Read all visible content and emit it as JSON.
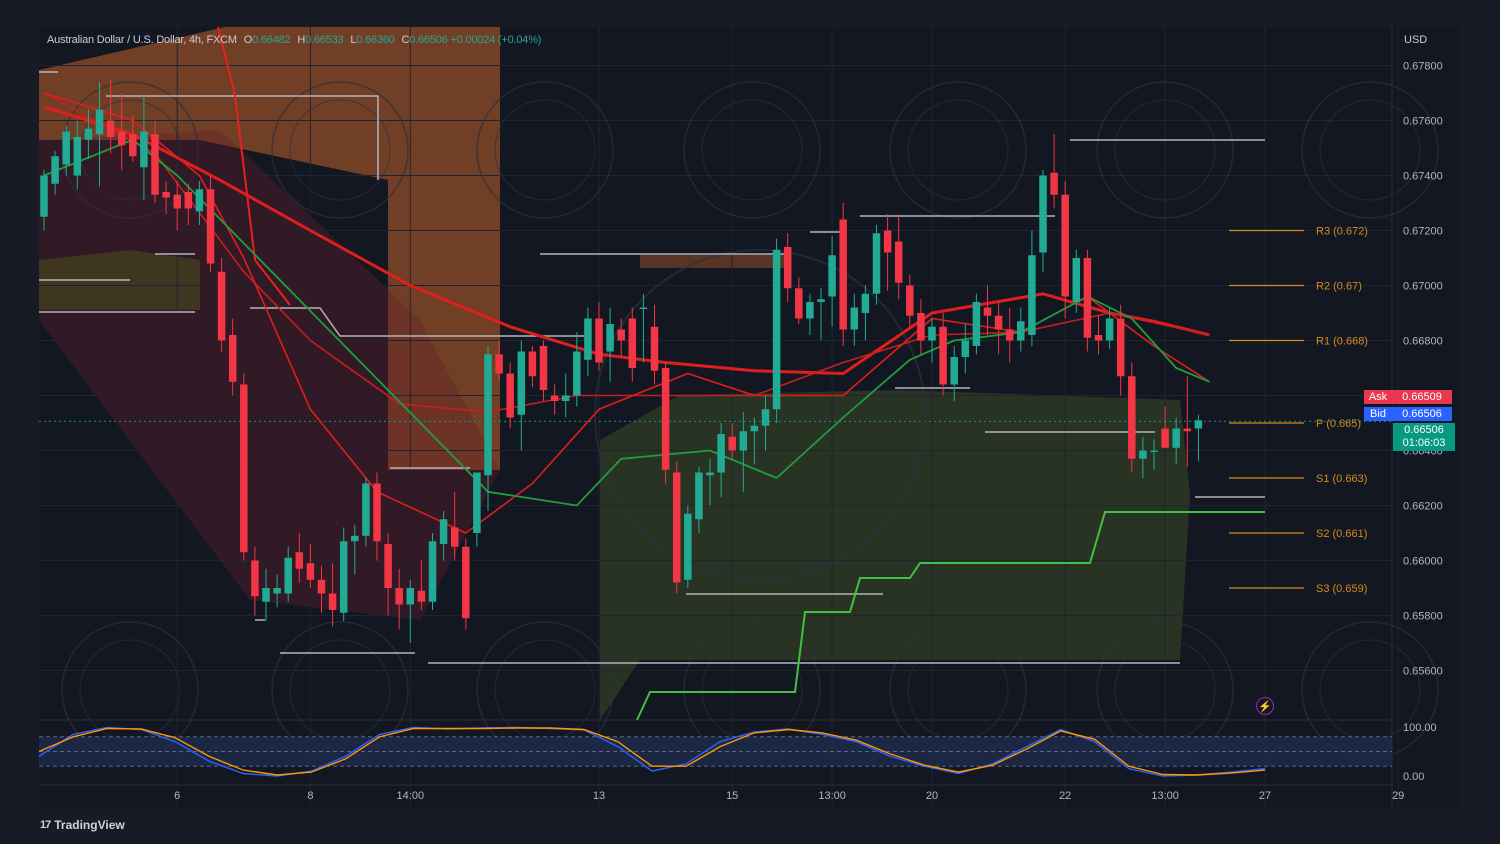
{
  "legend": {
    "symbol": "Australian Dollar / U.S. Dollar, 4h, FXCM",
    "o_label": "O",
    "o_value": "0.66482",
    "h_label": "H",
    "h_value": "0.66533",
    "l_label": "L",
    "l_value": "0.66360",
    "c_label": "C",
    "c_value": "0.66506",
    "change": "+0.00024 (+0.04%)"
  },
  "currency": "USD",
  "ask": {
    "label": "Ask",
    "value": "0.66509"
  },
  "bid": {
    "label": "Bid",
    "value": "0.66506"
  },
  "last": {
    "value": "0.66506",
    "countdown": "01:06:03"
  },
  "footer": {
    "brand": "TradingView"
  },
  "colors": {
    "up": "#22ab94",
    "down": "#f23645",
    "background": "#131722",
    "ma_red": "#e8201f",
    "ma_green": "#1e9e3e",
    "pivot": "#d48a1f",
    "stoch_k": "#2962ff",
    "stoch_d": "#ff9800"
  },
  "chart_data": {
    "type": "candlestick",
    "y_axis": {
      "min": 0.6542,
      "max": 0.6794,
      "ticks": [
        0.678,
        0.676,
        0.674,
        0.672,
        0.67,
        0.668,
        0.666,
        0.664,
        0.662,
        0.66,
        0.658,
        0.656
      ],
      "tick_labels": [
        "0.67800",
        "0.67600",
        "0.67400",
        "0.67200",
        "0.67000",
        "0.66800",
        "0.66600",
        "0.66400",
        "0.66200",
        "0.66000",
        "0.65800",
        "0.65600"
      ]
    },
    "x_axis": {
      "tick_labels": [
        "6",
        "8",
        "14:00",
        "13",
        "15",
        "13:00",
        "20",
        "22",
        "13:00",
        "27",
        "29"
      ],
      "tick_positions": [
        12,
        24,
        33,
        50,
        62,
        71,
        80,
        92,
        101,
        110,
        122
      ]
    },
    "candles": [
      {
        "o": 0.6725,
        "h": 0.6742,
        "l": 0.672,
        "c": 0.674
      },
      {
        "o": 0.6737,
        "h": 0.6749,
        "l": 0.6733,
        "c": 0.6747
      },
      {
        "o": 0.6744,
        "h": 0.6758,
        "l": 0.674,
        "c": 0.6756
      },
      {
        "o": 0.674,
        "h": 0.676,
        "l": 0.6735,
        "c": 0.6754
      },
      {
        "o": 0.6753,
        "h": 0.6764,
        "l": 0.6746,
        "c": 0.6757
      },
      {
        "o": 0.6755,
        "h": 0.6774,
        "l": 0.6736,
        "c": 0.6764
      },
      {
        "o": 0.676,
        "h": 0.6775,
        "l": 0.6748,
        "c": 0.6754
      },
      {
        "o": 0.6756,
        "h": 0.677,
        "l": 0.6742,
        "c": 0.6751
      },
      {
        "o": 0.6755,
        "h": 0.6762,
        "l": 0.6745,
        "c": 0.6747
      },
      {
        "o": 0.6743,
        "h": 0.6769,
        "l": 0.6731,
        "c": 0.6756
      },
      {
        "o": 0.6755,
        "h": 0.676,
        "l": 0.673,
        "c": 0.6733
      },
      {
        "o": 0.6734,
        "h": 0.6738,
        "l": 0.6726,
        "c": 0.6732
      },
      {
        "o": 0.6733,
        "h": 0.6738,
        "l": 0.672,
        "c": 0.6728
      },
      {
        "o": 0.6734,
        "h": 0.6737,
        "l": 0.6722,
        "c": 0.6728
      },
      {
        "o": 0.6727,
        "h": 0.6738,
        "l": 0.6722,
        "c": 0.6735
      },
      {
        "o": 0.6735,
        "h": 0.674,
        "l": 0.6705,
        "c": 0.6708
      },
      {
        "o": 0.6705,
        "h": 0.671,
        "l": 0.6676,
        "c": 0.668
      },
      {
        "o": 0.6682,
        "h": 0.6688,
        "l": 0.666,
        "c": 0.6665
      },
      {
        "o": 0.6664,
        "h": 0.6668,
        "l": 0.66,
        "c": 0.6603
      },
      {
        "o": 0.66,
        "h": 0.6605,
        "l": 0.658,
        "c": 0.6587
      },
      {
        "o": 0.6585,
        "h": 0.6597,
        "l": 0.6578,
        "c": 0.659
      },
      {
        "o": 0.6588,
        "h": 0.6595,
        "l": 0.6583,
        "c": 0.659
      },
      {
        "o": 0.6588,
        "h": 0.6605,
        "l": 0.6585,
        "c": 0.6601
      },
      {
        "o": 0.6603,
        "h": 0.661,
        "l": 0.6592,
        "c": 0.6597
      },
      {
        "o": 0.6599,
        "h": 0.6606,
        "l": 0.659,
        "c": 0.6593
      },
      {
        "o": 0.6593,
        "h": 0.6598,
        "l": 0.6581,
        "c": 0.6588
      },
      {
        "o": 0.6588,
        "h": 0.6599,
        "l": 0.6576,
        "c": 0.6582
      },
      {
        "o": 0.6581,
        "h": 0.6612,
        "l": 0.6578,
        "c": 0.6607
      },
      {
        "o": 0.6607,
        "h": 0.6613,
        "l": 0.6595,
        "c": 0.6609
      },
      {
        "o": 0.6609,
        "h": 0.663,
        "l": 0.6605,
        "c": 0.6628
      },
      {
        "o": 0.6628,
        "h": 0.6632,
        "l": 0.66,
        "c": 0.6607
      },
      {
        "o": 0.6606,
        "h": 0.661,
        "l": 0.658,
        "c": 0.659
      },
      {
        "o": 0.659,
        "h": 0.6597,
        "l": 0.6575,
        "c": 0.6584
      },
      {
        "o": 0.6584,
        "h": 0.6593,
        "l": 0.657,
        "c": 0.659
      },
      {
        "o": 0.6589,
        "h": 0.66,
        "l": 0.6582,
        "c": 0.6585
      },
      {
        "o": 0.6585,
        "h": 0.661,
        "l": 0.6582,
        "c": 0.6607
      },
      {
        "o": 0.6606,
        "h": 0.6618,
        "l": 0.66,
        "c": 0.6615
      },
      {
        "o": 0.6612,
        "h": 0.6625,
        "l": 0.66,
        "c": 0.6605
      },
      {
        "o": 0.6605,
        "h": 0.6608,
        "l": 0.6575,
        "c": 0.6579
      },
      {
        "o": 0.661,
        "h": 0.6632,
        "l": 0.6605,
        "c": 0.6632
      },
      {
        "o": 0.6631,
        "h": 0.6678,
        "l": 0.6618,
        "c": 0.6675
      },
      {
        "o": 0.6675,
        "h": 0.668,
        "l": 0.6665,
        "c": 0.6668
      },
      {
        "o": 0.6668,
        "h": 0.6672,
        "l": 0.6648,
        "c": 0.6652
      },
      {
        "o": 0.6653,
        "h": 0.668,
        "l": 0.664,
        "c": 0.6676
      },
      {
        "o": 0.6676,
        "h": 0.6678,
        "l": 0.6663,
        "c": 0.6667
      },
      {
        "o": 0.6678,
        "h": 0.668,
        "l": 0.6658,
        "c": 0.6662
      },
      {
        "o": 0.666,
        "h": 0.6664,
        "l": 0.6653,
        "c": 0.6658
      },
      {
        "o": 0.6658,
        "h": 0.6668,
        "l": 0.6652,
        "c": 0.666
      },
      {
        "o": 0.666,
        "h": 0.6683,
        "l": 0.6656,
        "c": 0.6676
      },
      {
        "o": 0.6673,
        "h": 0.6692,
        "l": 0.6667,
        "c": 0.6688
      },
      {
        "o": 0.6688,
        "h": 0.6694,
        "l": 0.6669,
        "c": 0.6672
      },
      {
        "o": 0.6676,
        "h": 0.6692,
        "l": 0.6665,
        "c": 0.6686
      },
      {
        "o": 0.6684,
        "h": 0.6688,
        "l": 0.6674,
        "c": 0.668
      },
      {
        "o": 0.6688,
        "h": 0.6692,
        "l": 0.6665,
        "c": 0.667
      },
      {
        "o": 0.6692,
        "h": 0.6697,
        "l": 0.6672,
        "c": 0.6692
      },
      {
        "o": 0.6685,
        "h": 0.6693,
        "l": 0.6664,
        "c": 0.6669
      },
      {
        "o": 0.667,
        "h": 0.6672,
        "l": 0.6628,
        "c": 0.6633
      },
      {
        "o": 0.6632,
        "h": 0.6636,
        "l": 0.6588,
        "c": 0.6592
      },
      {
        "o": 0.6593,
        "h": 0.662,
        "l": 0.659,
        "c": 0.6617
      },
      {
        "o": 0.6615,
        "h": 0.6634,
        "l": 0.661,
        "c": 0.6632
      },
      {
        "o": 0.6631,
        "h": 0.6637,
        "l": 0.662,
        "c": 0.6632
      },
      {
        "o": 0.6632,
        "h": 0.665,
        "l": 0.6623,
        "c": 0.6646
      },
      {
        "o": 0.6645,
        "h": 0.665,
        "l": 0.6637,
        "c": 0.664
      },
      {
        "o": 0.664,
        "h": 0.6654,
        "l": 0.6625,
        "c": 0.6647
      },
      {
        "o": 0.6647,
        "h": 0.6652,
        "l": 0.6635,
        "c": 0.6649
      },
      {
        "o": 0.6649,
        "h": 0.666,
        "l": 0.664,
        "c": 0.6655
      },
      {
        "o": 0.6655,
        "h": 0.6717,
        "l": 0.665,
        "c": 0.6713
      },
      {
        "o": 0.6714,
        "h": 0.6719,
        "l": 0.6694,
        "c": 0.6699
      },
      {
        "o": 0.6699,
        "h": 0.6703,
        "l": 0.6686,
        "c": 0.6688
      },
      {
        "o": 0.6688,
        "h": 0.6697,
        "l": 0.6682,
        "c": 0.6694
      },
      {
        "o": 0.6694,
        "h": 0.6699,
        "l": 0.668,
        "c": 0.6695
      },
      {
        "o": 0.6696,
        "h": 0.6718,
        "l": 0.6685,
        "c": 0.6711
      },
      {
        "o": 0.6724,
        "h": 0.673,
        "l": 0.6678,
        "c": 0.6684
      },
      {
        "o": 0.6684,
        "h": 0.6697,
        "l": 0.6678,
        "c": 0.6692
      },
      {
        "o": 0.669,
        "h": 0.67,
        "l": 0.668,
        "c": 0.6697
      },
      {
        "o": 0.6697,
        "h": 0.6722,
        "l": 0.6693,
        "c": 0.6719
      },
      {
        "o": 0.672,
        "h": 0.6726,
        "l": 0.6698,
        "c": 0.6712
      },
      {
        "o": 0.6716,
        "h": 0.6726,
        "l": 0.6695,
        "c": 0.6701
      },
      {
        "o": 0.67,
        "h": 0.6704,
        "l": 0.6685,
        "c": 0.6689
      },
      {
        "o": 0.669,
        "h": 0.6695,
        "l": 0.6675,
        "c": 0.668
      },
      {
        "o": 0.668,
        "h": 0.6688,
        "l": 0.6672,
        "c": 0.6685
      },
      {
        "o": 0.6685,
        "h": 0.669,
        "l": 0.666,
        "c": 0.6664
      },
      {
        "o": 0.6664,
        "h": 0.6678,
        "l": 0.6658,
        "c": 0.6674
      },
      {
        "o": 0.6674,
        "h": 0.6686,
        "l": 0.6668,
        "c": 0.668
      },
      {
        "o": 0.6678,
        "h": 0.6697,
        "l": 0.6675,
        "c": 0.6694
      },
      {
        "o": 0.6692,
        "h": 0.67,
        "l": 0.6682,
        "c": 0.6689
      },
      {
        "o": 0.6689,
        "h": 0.6694,
        "l": 0.6675,
        "c": 0.6684
      },
      {
        "o": 0.6684,
        "h": 0.6692,
        "l": 0.6672,
        "c": 0.668
      },
      {
        "o": 0.668,
        "h": 0.6692,
        "l": 0.6676,
        "c": 0.6687
      },
      {
        "o": 0.6682,
        "h": 0.672,
        "l": 0.6678,
        "c": 0.6711
      },
      {
        "o": 0.6712,
        "h": 0.6742,
        "l": 0.6705,
        "c": 0.674
      },
      {
        "o": 0.6741,
        "h": 0.6755,
        "l": 0.6728,
        "c": 0.6733
      },
      {
        "o": 0.6733,
        "h": 0.6738,
        "l": 0.6688,
        "c": 0.6696
      },
      {
        "o": 0.6694,
        "h": 0.6713,
        "l": 0.669,
        "c": 0.671
      },
      {
        "o": 0.671,
        "h": 0.6713,
        "l": 0.6676,
        "c": 0.6681
      },
      {
        "o": 0.6682,
        "h": 0.6689,
        "l": 0.6675,
        "c": 0.668
      },
      {
        "o": 0.668,
        "h": 0.6692,
        "l": 0.6677,
        "c": 0.6688
      },
      {
        "o": 0.6688,
        "h": 0.6693,
        "l": 0.666,
        "c": 0.6667
      },
      {
        "o": 0.6667,
        "h": 0.6672,
        "l": 0.6632,
        "c": 0.6637
      },
      {
        "o": 0.6637,
        "h": 0.6645,
        "l": 0.663,
        "c": 0.664
      },
      {
        "o": 0.664,
        "h": 0.6644,
        "l": 0.6633,
        "c": 0.664
      },
      {
        "o": 0.6648,
        "h": 0.6656,
        "l": 0.6642,
        "c": 0.6641
      },
      {
        "o": 0.6641,
        "h": 0.6652,
        "l": 0.6635,
        "c": 0.6648
      },
      {
        "o": 0.6648,
        "h": 0.6667,
        "l": 0.6634,
        "c": 0.6647
      },
      {
        "o": 0.6648,
        "h": 0.6653,
        "l": 0.6636,
        "c": 0.6651
      }
    ],
    "moving_averages": [
      {
        "name": "slow",
        "color": "#e01e1e",
        "points": [
          [
            0,
            0.6765
          ],
          [
            8,
            0.6755
          ],
          [
            16,
            0.6738
          ],
          [
            24,
            0.672
          ],
          [
            33,
            0.67
          ],
          [
            42,
            0.6685
          ],
          [
            50,
            0.6675
          ],
          [
            56,
            0.6672
          ],
          [
            64,
            0.6669
          ],
          [
            72,
            0.6668
          ],
          [
            80,
            0.669
          ],
          [
            90,
            0.6697
          ],
          [
            96,
            0.669
          ],
          [
            100,
            0.6687
          ],
          [
            105,
            0.6682
          ]
        ]
      },
      {
        "name": "mid",
        "color": "#c81e1e",
        "points": [
          [
            0,
            0.677
          ],
          [
            10,
            0.6748
          ],
          [
            18,
            0.6705
          ],
          [
            24,
            0.668
          ],
          [
            32,
            0.6657
          ],
          [
            40,
            0.6654
          ],
          [
            48,
            0.666
          ],
          [
            56,
            0.666
          ],
          [
            64,
            0.666
          ],
          [
            72,
            0.6672
          ],
          [
            80,
            0.6682
          ],
          [
            88,
            0.6683
          ],
          [
            96,
            0.669
          ],
          [
            105,
            0.6682
          ]
        ]
      },
      {
        "name": "fast",
        "color": "#e21d1d",
        "points": [
          [
            0,
            0.677
          ],
          [
            8,
            0.676
          ],
          [
            14,
            0.674
          ],
          [
            18,
            0.671
          ],
          [
            24,
            0.6655
          ],
          [
            30,
            0.6625
          ],
          [
            38,
            0.661
          ],
          [
            44,
            0.6628
          ],
          [
            50,
            0.6655
          ],
          [
            58,
            0.6668
          ],
          [
            64,
            0.666
          ],
          [
            72,
            0.666
          ],
          [
            80,
            0.6688
          ],
          [
            88,
            0.6683
          ],
          [
            94,
            0.6696
          ],
          [
            100,
            0.6678
          ],
          [
            105,
            0.6665
          ]
        ]
      },
      {
        "name": "green",
        "color": "#1e9e3e",
        "points": [
          [
            0,
            0.674
          ],
          [
            8,
            0.6753
          ],
          [
            12,
            0.674
          ],
          [
            40,
            0.6625
          ],
          [
            48,
            0.662
          ],
          [
            52,
            0.6637
          ],
          [
            60,
            0.664
          ],
          [
            66,
            0.663
          ],
          [
            72,
            0.6652
          ],
          [
            78,
            0.6673
          ],
          [
            82,
            0.668
          ],
          [
            88,
            0.6683
          ],
          [
            94,
            0.6696
          ],
          [
            98,
            0.6688
          ],
          [
            102,
            0.667
          ],
          [
            105,
            0.6665
          ]
        ]
      }
    ],
    "pivots": [
      {
        "label": "R3 (0.672)",
        "value": 0.672
      },
      {
        "label": "R2 (0.67)",
        "value": 0.67
      },
      {
        "label": "R1 (0.668)",
        "value": 0.668
      },
      {
        "label": "P (0.665)",
        "value": 0.665
      },
      {
        "label": "S1 (0.663)",
        "value": 0.663
      },
      {
        "label": "S2 (0.661)",
        "value": 0.661
      },
      {
        "label": "S3 (0.659)",
        "value": 0.659
      }
    ],
    "oscillator": {
      "axis_labels": [
        "100.00",
        "0.00"
      ],
      "k": [
        40,
        85,
        99,
        95,
        70,
        30,
        5,
        0,
        10,
        40,
        85,
        99,
        96,
        98,
        99,
        97,
        94,
        60,
        10,
        25,
        70,
        90,
        96,
        85,
        70,
        40,
        20,
        5,
        25,
        60,
        95,
        70,
        15,
        0,
        2,
        8,
        15
      ],
      "d": [
        50,
        80,
        97,
        96,
        78,
        40,
        12,
        2,
        8,
        35,
        80,
        97,
        97,
        97,
        98,
        98,
        95,
        70,
        20,
        20,
        60,
        88,
        95,
        88,
        73,
        45,
        22,
        8,
        22,
        55,
        92,
        75,
        20,
        3,
        2,
        6,
        12
      ]
    }
  }
}
